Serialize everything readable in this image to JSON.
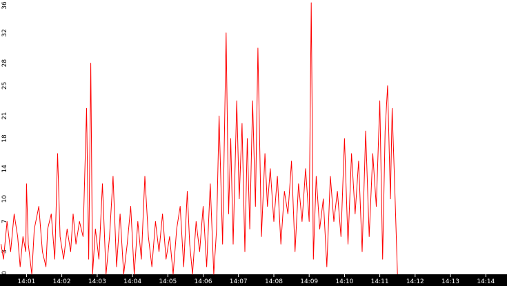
{
  "chart_data": {
    "type": "line",
    "title": "",
    "xlabel": "",
    "ylabel": "",
    "ylim": [
      0,
      36
    ],
    "y_ticks": [
      "0",
      "3",
      "7",
      "10",
      "14",
      "18",
      "21",
      "25",
      "28",
      "32",
      "36"
    ],
    "x_ticks": [
      "14:01",
      "14:02",
      "14:03",
      "14:04",
      "14:05",
      "14:06",
      "14:07",
      "14:08",
      "14:09",
      "14:10",
      "14:11",
      "14:12",
      "14:13",
      "14:14"
    ],
    "x_unit": "minutes after 14:00",
    "x_range": [
      0.25,
      14.6
    ],
    "grid": false,
    "legend": "none",
    "colors": {
      "series": "#ff0000",
      "axis_bar": "#000000",
      "tick_text": "#ffffff"
    },
    "series": [
      {
        "x": [
          0.28,
          0.35,
          0.45,
          0.55,
          0.65,
          0.75,
          0.82,
          0.9,
          0.98,
          1.0,
          1.05,
          1.15,
          1.22,
          1.35,
          1.45,
          1.55,
          1.6,
          1.7,
          1.8,
          1.88,
          1.95,
          2.05,
          2.15,
          2.25,
          2.32,
          2.4,
          2.5,
          2.6,
          2.7,
          2.76,
          2.82,
          2.87,
          2.95,
          3.05,
          3.15,
          3.25,
          3.35,
          3.45,
          3.55,
          3.65,
          3.75,
          3.85,
          3.95,
          4.05,
          4.15,
          4.25,
          4.35,
          4.45,
          4.55,
          4.65,
          4.75,
          4.85,
          4.95,
          5.05,
          5.15,
          5.25,
          5.35,
          5.45,
          5.55,
          5.62,
          5.7,
          5.8,
          5.9,
          6.0,
          6.1,
          6.2,
          6.3,
          6.38,
          6.45,
          6.55,
          6.65,
          6.72,
          6.78,
          6.85,
          6.95,
          7.02,
          7.1,
          7.18,
          7.25,
          7.32,
          7.4,
          7.48,
          7.55,
          7.65,
          7.75,
          7.82,
          7.9,
          8.0,
          8.1,
          8.2,
          8.3,
          8.4,
          8.5,
          8.6,
          8.7,
          8.8,
          8.9,
          9.0,
          9.06,
          9.12,
          9.2,
          9.3,
          9.4,
          9.5,
          9.6,
          9.7,
          9.8,
          9.9,
          10.0,
          10.1,
          10.2,
          10.3,
          10.4,
          10.5,
          10.6,
          10.7,
          10.8,
          10.9,
          11.0,
          11.08,
          11.15,
          11.22,
          11.3,
          11.35,
          11.42,
          11.5
        ],
        "y": [
          4,
          2,
          7,
          3,
          8,
          5,
          1,
          5,
          3,
          12,
          4,
          0,
          6,
          9,
          3,
          1,
          6,
          8,
          2,
          16,
          5,
          2,
          6,
          3,
          8,
          4,
          7,
          5,
          22,
          2,
          28,
          0,
          6,
          2,
          12,
          0,
          5,
          13,
          1,
          8,
          0,
          4,
          9,
          0,
          7,
          2,
          13,
          5,
          1,
          7,
          3,
          8,
          2,
          5,
          0,
          6,
          9,
          1,
          11,
          4,
          0,
          7,
          3,
          9,
          1,
          12,
          0,
          6,
          21,
          4,
          32,
          8,
          18,
          4,
          23,
          10,
          20,
          3,
          18,
          6,
          23,
          9,
          30,
          5,
          16,
          9,
          14,
          7,
          13,
          4,
          11,
          8,
          15,
          3,
          12,
          7,
          14,
          7,
          36,
          2,
          13,
          6,
          10,
          1,
          13,
          7,
          11,
          5,
          18,
          4,
          16,
          8,
          15,
          3,
          19,
          5,
          16,
          9,
          23,
          2,
          19,
          25,
          10,
          22,
          12,
          0
        ]
      }
    ]
  }
}
